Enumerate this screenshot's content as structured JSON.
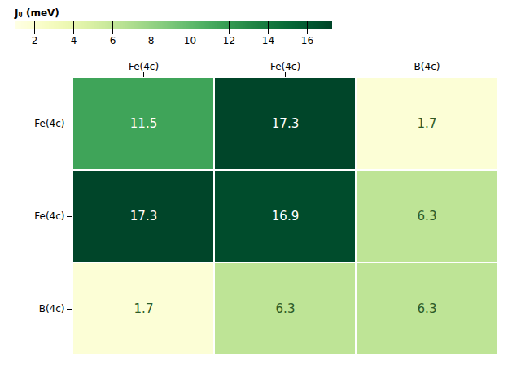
{
  "chart_data": {
    "type": "heatmap",
    "x": [
      "Fe(4c)",
      "Fe(4c)",
      "B(4c)"
    ],
    "y": [
      "Fe(4c)",
      "Fe(4c)",
      "B(4c)"
    ],
    "values": [
      [
        11.5,
        17.3,
        1.7
      ],
      [
        17.3,
        16.9,
        6.3
      ],
      [
        1.7,
        6.3,
        6.3
      ]
    ],
    "color": "YlGn",
    "colorbar_label": "Jᵢⱼ (meV)",
    "colorbar_range": [
      1.0,
      17.3
    ],
    "colorbar_ticks": [
      2,
      4,
      6,
      8,
      10,
      12,
      14,
      16
    ],
    "data_labels": true,
    "colors": [
      [
        "white",
        "white",
        "#2d5a27"
      ],
      [
        "white",
        "white",
        "#2d5a27"
      ],
      [
        "#2d5a27",
        "#2d5a27",
        "#2d5a27"
      ]
    ]
  }
}
